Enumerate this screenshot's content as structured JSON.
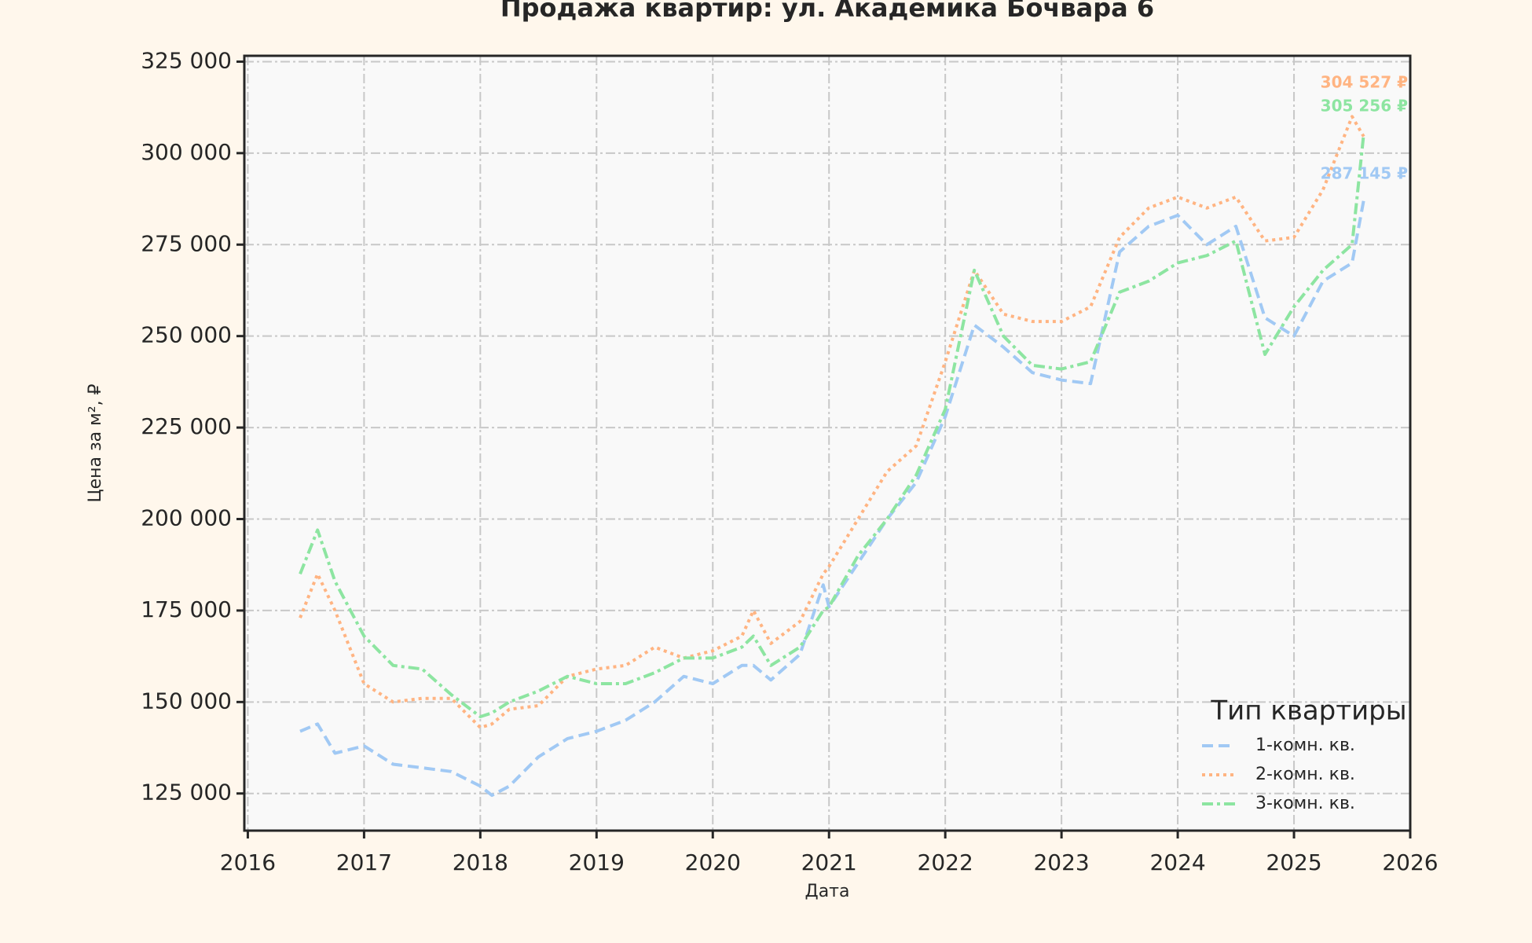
{
  "chart_data": {
    "type": "line",
    "title": "Продажа квартир: ул. Академика Бочвара 6",
    "x_label": "Дата",
    "y_label": "Цена за м², ₽",
    "legend_title": "Тип квартиры",
    "legend_position": "lower right",
    "grid": true,
    "xlim": [
      2015.97,
      2026
    ],
    "xticks": [
      2016,
      2017,
      2018,
      2019,
      2020,
      2021,
      2022,
      2023,
      2024,
      2025,
      2026
    ],
    "ylim": [
      114850,
      326600
    ],
    "yticks": [
      {
        "value": 125000,
        "label": "125 000"
      },
      {
        "value": 150000,
        "label": "150 000"
      },
      {
        "value": 175000,
        "label": "175 000"
      },
      {
        "value": 200000,
        "label": "200 000"
      },
      {
        "value": 225000,
        "label": "225 000"
      },
      {
        "value": 250000,
        "label": "250 000"
      },
      {
        "value": 275000,
        "label": "275 000"
      },
      {
        "value": 300000,
        "label": "300 000"
      },
      {
        "value": 325000,
        "label": "325 000"
      }
    ],
    "x": [
      2016.45,
      2016.6,
      2016.75,
      2017.0,
      2017.25,
      2017.5,
      2017.75,
      2018.0,
      2018.1,
      2018.25,
      2018.5,
      2018.75,
      2019.0,
      2019.25,
      2019.5,
      2019.75,
      2020.0,
      2020.25,
      2020.35,
      2020.5,
      2020.75,
      2020.95,
      2021.0,
      2021.25,
      2021.5,
      2021.75,
      2022.0,
      2022.25,
      2022.5,
      2022.75,
      2023.0,
      2023.25,
      2023.5,
      2023.75,
      2024.0,
      2024.25,
      2024.5,
      2024.75,
      2025.0,
      2025.25,
      2025.5,
      2025.6
    ],
    "series": [
      {
        "name": "1-комн. кв.",
        "color": "#a1c9f4",
        "dash": "14 7",
        "values": [
          142000,
          144000,
          136000,
          138000,
          133000,
          132000,
          131000,
          127000,
          124500,
          127000,
          135000,
          140000,
          142000,
          145000,
          150000,
          157000,
          155000,
          160000,
          160000,
          156000,
          163000,
          182000,
          176000,
          188000,
          200000,
          210000,
          228000,
          253000,
          247000,
          240000,
          238000,
          237000,
          273000,
          280000,
          283000,
          275000,
          280000,
          255000,
          250000,
          265000,
          270000,
          287145
        ]
      },
      {
        "name": "2-комн. кв.",
        "color": "#ffb482",
        "dash": "4 5",
        "values": [
          173000,
          185000,
          175000,
          155000,
          150000,
          151000,
          151000,
          143000,
          144000,
          148000,
          149000,
          157000,
          159000,
          160000,
          165000,
          162000,
          164000,
          168000,
          175000,
          166000,
          172000,
          185000,
          187000,
          200000,
          213000,
          220000,
          243000,
          268000,
          256000,
          254000,
          254000,
          258000,
          277000,
          285000,
          288000,
          285000,
          288000,
          276000,
          277000,
          290000,
          310000,
          304527
        ]
      },
      {
        "name": "3-комн. кв.",
        "color": "#8de5a1",
        "dash": "14 5 4 5",
        "values": [
          185000,
          197000,
          183000,
          168000,
          160000,
          159000,
          152000,
          146000,
          147000,
          150000,
          153000,
          157000,
          155000,
          155000,
          158000,
          162000,
          162000,
          165000,
          168000,
          160000,
          165000,
          175000,
          176000,
          190000,
          200000,
          212000,
          230000,
          268000,
          250000,
          242000,
          241000,
          243000,
          262000,
          265000,
          270000,
          272000,
          276000,
          245000,
          258000,
          268000,
          275000,
          305256
        ]
      }
    ],
    "annotations": [
      "304 527 ₽",
      "305 256 ₽",
      "287 145 ₽"
    ]
  }
}
